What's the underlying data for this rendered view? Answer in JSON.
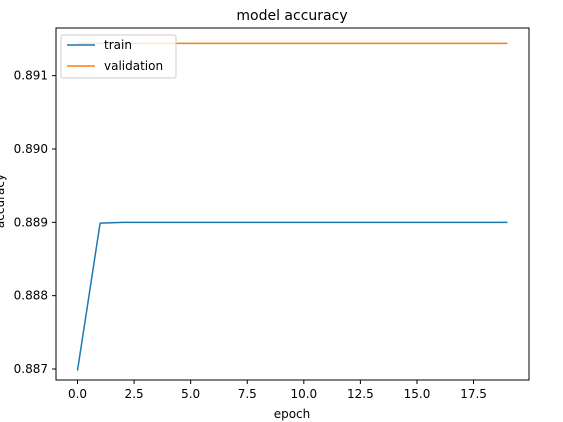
{
  "chart_data": {
    "type": "line",
    "title": "model accuracy",
    "xlabel": "epoch",
    "ylabel": "accuracy",
    "x": [
      0,
      1,
      2,
      3,
      4,
      5,
      6,
      7,
      8,
      9,
      10,
      11,
      12,
      13,
      14,
      15,
      16,
      17,
      18,
      19
    ],
    "series": [
      {
        "name": "train",
        "color": "#1f77b4",
        "values": [
          0.88698,
          0.88899,
          0.889,
          0.889,
          0.889,
          0.889,
          0.889,
          0.889,
          0.889,
          0.889,
          0.889,
          0.889,
          0.889,
          0.889,
          0.889,
          0.889,
          0.889,
          0.889,
          0.889,
          0.889
        ]
      },
      {
        "name": "validation",
        "color": "#ff7f0e",
        "values": [
          0.89144,
          0.89144,
          0.89144,
          0.89144,
          0.89144,
          0.89144,
          0.89144,
          0.89144,
          0.89144,
          0.89144,
          0.89144,
          0.89144,
          0.89144,
          0.89144,
          0.89144,
          0.89144,
          0.89144,
          0.89144,
          0.89144,
          0.89144
        ]
      }
    ],
    "xlim": [
      -0.95,
      19.95
    ],
    "ylim": [
      0.88685,
      0.89165
    ],
    "xticks": [
      0.0,
      2.5,
      5.0,
      7.5,
      10.0,
      12.5,
      15.0,
      17.5
    ],
    "xtick_labels": [
      "0.0",
      "2.5",
      "5.0",
      "7.5",
      "10.0",
      "12.5",
      "15.0",
      "17.5"
    ],
    "yticks": [
      0.887,
      0.888,
      0.889,
      0.89,
      0.891
    ],
    "ytick_labels": [
      "0.887",
      "0.888",
      "0.889",
      "0.890",
      "0.891"
    ],
    "grid": false,
    "legend_position": "upper left"
  }
}
